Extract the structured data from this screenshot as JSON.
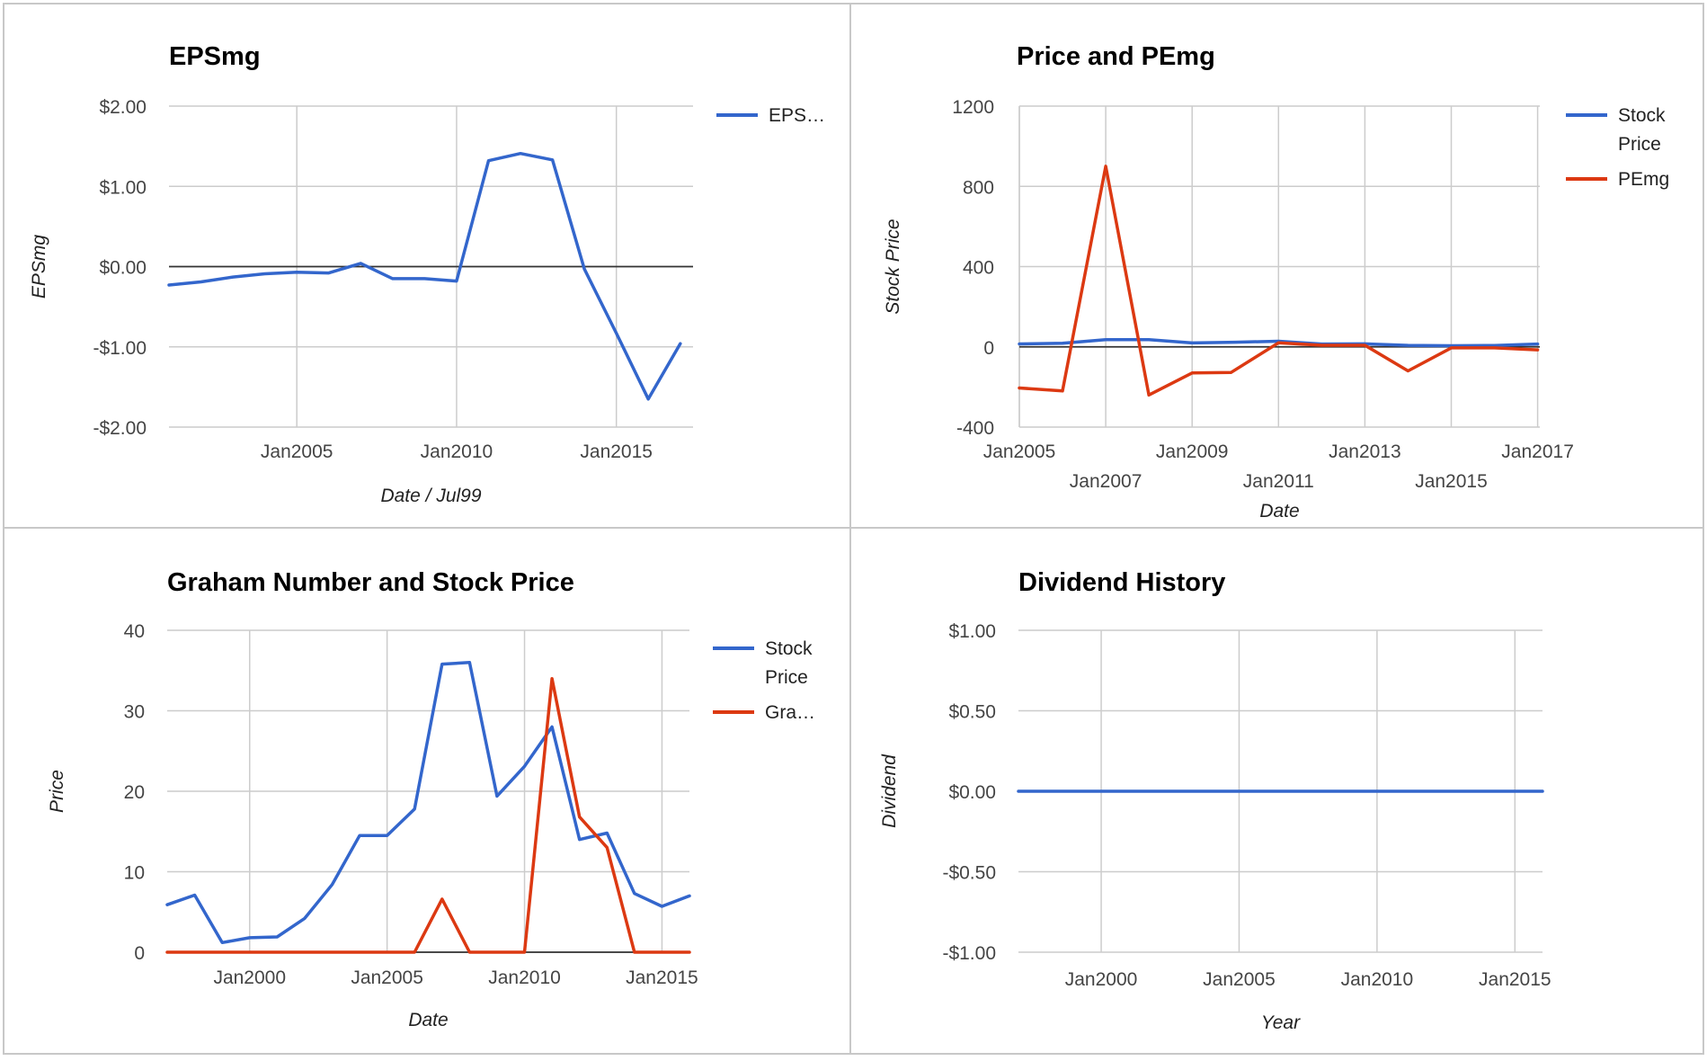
{
  "colors": {
    "blue": "#3366cc",
    "red": "#dc3912",
    "grid": "#cccccc",
    "zero": "#333333",
    "text": "#444444",
    "title": "#000000"
  },
  "chart_data": [
    {
      "type": "line",
      "title": "EPSmg",
      "xlabel": "Date / Jul99",
      "ylabel": "EPSmg",
      "x_axis": "date",
      "xlim": [
        2001,
        2017.4
      ],
      "ylim": [
        -2,
        2
      ],
      "yticks": [
        2,
        1,
        0,
        -1,
        -2
      ],
      "ytick_labels": [
        "$2.00",
        "$1.00",
        "$0.00",
        "-$1.00",
        "-$2.00"
      ],
      "xticks": [
        2005,
        2010,
        2015
      ],
      "xtick_labels": [
        "Jan2005",
        "Jan2010",
        "Jan2015"
      ],
      "legend_position": "right",
      "series": [
        {
          "name": "EPS…",
          "color": "#3366cc",
          "x": [
            2001,
            2002,
            2003,
            2004,
            2005,
            2006,
            2007,
            2008,
            2009,
            2010,
            2011,
            2012,
            2013,
            2014,
            2015,
            2016,
            2017
          ],
          "y": [
            -0.23,
            -0.19,
            -0.13,
            -0.09,
            -0.07,
            -0.08,
            0.04,
            -0.15,
            -0.15,
            -0.18,
            1.32,
            1.41,
            1.33,
            -0.03,
            -0.83,
            -1.65,
            -0.96
          ]
        }
      ]
    },
    {
      "type": "line",
      "title": "Price and PEmg",
      "xlabel": "Date",
      "ylabel": "Stock Price",
      "x_axis": "date",
      "xlim": [
        2005,
        2017.05
      ],
      "ylim": [
        -400,
        1200
      ],
      "yticks": [
        1200,
        800,
        400,
        0,
        -400
      ],
      "ytick_labels": [
        "1200",
        "800",
        "400",
        "0",
        "-400"
      ],
      "xticks": [
        2005,
        2007,
        2009,
        2011,
        2013,
        2015,
        2017
      ],
      "xtick_labels": [
        "Jan2005",
        "Jan2007",
        "Jan2009",
        "Jan2011",
        "Jan2013",
        "Jan2015",
        "Jan2017"
      ],
      "legend_position": "right",
      "series": [
        {
          "name": "Stock Price",
          "color": "#3366cc",
          "x": [
            2005,
            2006,
            2007,
            2008,
            2009,
            2010,
            2011,
            2012,
            2013,
            2014,
            2015,
            2016,
            2017
          ],
          "y": [
            14.5,
            17.8,
            35.8,
            36,
            19.4,
            23.1,
            28,
            14,
            14.8,
            7.3,
            5.7,
            7,
            14
          ]
        },
        {
          "name": "PEmg",
          "color": "#dc3912",
          "x": [
            2005,
            2006,
            2007,
            2008,
            2009,
            2009.9,
            2011,
            2012,
            2013,
            2014,
            2015,
            2016,
            2017
          ],
          "y": [
            -205,
            -220,
            900,
            -240,
            -130,
            -128,
            20,
            8,
            8,
            -120,
            -5,
            -5,
            -15
          ]
        }
      ]
    },
    {
      "type": "line",
      "title": "Graham Number and Stock Price",
      "xlabel": "Date",
      "ylabel": "Price",
      "x_axis": "date",
      "xlim": [
        1997,
        2016
      ],
      "ylim": [
        0,
        40
      ],
      "yticks": [
        40,
        30,
        20,
        10,
        0
      ],
      "ytick_labels": [
        "40",
        "30",
        "20",
        "10",
        "0"
      ],
      "xticks": [
        2000,
        2005,
        2010,
        2015
      ],
      "xtick_labels": [
        "Jan2000",
        "Jan2005",
        "Jan2010",
        "Jan2015"
      ],
      "legend_position": "right",
      "series": [
        {
          "name": "Stock Price",
          "color": "#3366cc",
          "x": [
            1997,
            1998,
            1999,
            2000,
            2001,
            2002,
            2003,
            2004,
            2005,
            2006,
            2007,
            2008,
            2009,
            2010,
            2011,
            2012,
            2013,
            2014,
            2015,
            2016
          ],
          "y": [
            5.9,
            7.1,
            1.2,
            1.8,
            1.9,
            4.2,
            8.4,
            14.5,
            14.5,
            17.8,
            35.8,
            36,
            19.4,
            23.1,
            28,
            14,
            14.8,
            7.3,
            5.7,
            7
          ]
        },
        {
          "name": "Gra…",
          "color": "#dc3912",
          "x": [
            1997,
            1998,
            1999,
            2000,
            2001,
            2002,
            2003,
            2004,
            2005,
            2006,
            2007,
            2008,
            2009,
            2010,
            2011,
            2012,
            2013,
            2014,
            2015,
            2016
          ],
          "y": [
            0,
            0,
            0,
            0,
            0,
            0,
            0,
            0,
            0,
            0,
            6.6,
            0,
            0,
            0,
            34,
            16.8,
            13,
            0,
            0,
            0
          ]
        }
      ]
    },
    {
      "type": "line",
      "title": "Dividend History",
      "xlabel": "Year",
      "ylabel": "Dividend",
      "x_axis": "date",
      "xlim": [
        1997,
        2016
      ],
      "ylim": [
        -1,
        1
      ],
      "yticks": [
        1,
        0.5,
        0,
        -0.5,
        -1
      ],
      "ytick_labels": [
        "$1.00",
        "$0.50",
        "$0.00",
        "-$0.50",
        "-$1.00"
      ],
      "xticks": [
        2000,
        2005,
        2010,
        2015
      ],
      "xtick_labels": [
        "Jan2000",
        "Jan2005",
        "Jan2010",
        "Jan2015"
      ],
      "legend_position": "none",
      "series": [
        {
          "color": "#3366cc",
          "x": [
            1997,
            2016
          ],
          "y": [
            0,
            0
          ]
        }
      ]
    }
  ]
}
